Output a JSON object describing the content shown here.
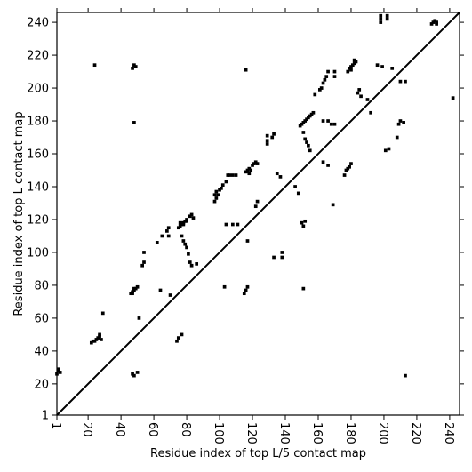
{
  "chart_data": {
    "type": "scatter",
    "title": "",
    "xlabel": "Residue index of top L/5 contact map",
    "ylabel": "Residue index of top L contact map",
    "xlim": [
      1,
      246
    ],
    "ylim": [
      1,
      246
    ],
    "xticks": [
      1,
      20,
      40,
      60,
      80,
      100,
      120,
      140,
      160,
      180,
      200,
      220,
      240
    ],
    "yticks": [
      1,
      20,
      40,
      60,
      80,
      100,
      120,
      140,
      160,
      180,
      200,
      220,
      240
    ],
    "xtick_rotation": -90,
    "grid": false,
    "diagonal": {
      "from": [
        1,
        1
      ],
      "to": [
        246,
        246
      ],
      "color": "#000000"
    },
    "marker": {
      "shape": "square",
      "size": 1,
      "color": "#000000"
    },
    "series": [
      {
        "points": [
          [
            47,
            76
          ],
          [
            48,
            77
          ],
          [
            49,
            78
          ],
          [
            50,
            79
          ],
          [
            46,
            75
          ],
          [
            48,
            78
          ],
          [
            47,
            75
          ],
          [
            51,
            60
          ],
          [
            53,
            92
          ],
          [
            54,
            94
          ],
          [
            54,
            100
          ],
          [
            62,
            106
          ],
          [
            65,
            110
          ],
          [
            68,
            113
          ],
          [
            69,
            110
          ],
          [
            69,
            115
          ],
          [
            70,
            74
          ],
          [
            64,
            77
          ],
          [
            75,
            115
          ],
          [
            76,
            116
          ],
          [
            77,
            117
          ],
          [
            78,
            118
          ],
          [
            79,
            119
          ],
          [
            80,
            120
          ],
          [
            76,
            118
          ],
          [
            78,
            117
          ],
          [
            80,
            119
          ],
          [
            82,
            122
          ],
          [
            83,
            123
          ],
          [
            84,
            121
          ],
          [
            77,
            110
          ],
          [
            78,
            107
          ],
          [
            79,
            105
          ],
          [
            80,
            103
          ],
          [
            81,
            99
          ],
          [
            82,
            94
          ],
          [
            83,
            92
          ],
          [
            86,
            93
          ],
          [
            97,
            131
          ],
          [
            98,
            133
          ],
          [
            97,
            135
          ],
          [
            98,
            137
          ],
          [
            99,
            135
          ],
          [
            100,
            138
          ],
          [
            101,
            139
          ],
          [
            102,
            141
          ],
          [
            104,
            143
          ],
          [
            105,
            147
          ],
          [
            106,
            147
          ],
          [
            108,
            147
          ],
          [
            110,
            147
          ],
          [
            104,
            117
          ],
          [
            108,
            117
          ],
          [
            111,
            117
          ],
          [
            115,
            75
          ],
          [
            116,
            77
          ],
          [
            117,
            79
          ],
          [
            103,
            79
          ],
          [
            116,
            149
          ],
          [
            117,
            150
          ],
          [
            118,
            151
          ],
          [
            119,
            150
          ],
          [
            120,
            153
          ],
          [
            121,
            154
          ],
          [
            122,
            155
          ],
          [
            118,
            148
          ],
          [
            123,
            154
          ],
          [
            122,
            128
          ],
          [
            123,
            131
          ],
          [
            117,
            107
          ],
          [
            129,
            166
          ],
          [
            129,
            168
          ],
          [
            129,
            171
          ],
          [
            132,
            170
          ],
          [
            133,
            172
          ],
          [
            135,
            148
          ],
          [
            137,
            146
          ],
          [
            138,
            97
          ],
          [
            138,
            100
          ],
          [
            133,
            97
          ],
          [
            146,
            140
          ],
          [
            148,
            136
          ],
          [
            150,
            118
          ],
          [
            151,
            116
          ],
          [
            152,
            119
          ],
          [
            151,
            78
          ],
          [
            149,
            177
          ],
          [
            150,
            178
          ],
          [
            151,
            179
          ],
          [
            152,
            180
          ],
          [
            153,
            181
          ],
          [
            154,
            182
          ],
          [
            155,
            183
          ],
          [
            156,
            184
          ],
          [
            157,
            185
          ],
          [
            151,
            173
          ],
          [
            152,
            169
          ],
          [
            153,
            167
          ],
          [
            154,
            165
          ],
          [
            155,
            162
          ],
          [
            158,
            196
          ],
          [
            161,
            199
          ],
          [
            162,
            200
          ],
          [
            163,
            203
          ],
          [
            164,
            205
          ],
          [
            165,
            207
          ],
          [
            166,
            210
          ],
          [
            170,
            207
          ],
          [
            170,
            210
          ],
          [
            163,
            180
          ],
          [
            166,
            180
          ],
          [
            168,
            178
          ],
          [
            170,
            178
          ],
          [
            169,
            129
          ],
          [
            163,
            155
          ],
          [
            166,
            153
          ],
          [
            176,
            147
          ],
          [
            177,
            150
          ],
          [
            178,
            151
          ],
          [
            179,
            152
          ],
          [
            180,
            154
          ],
          [
            178,
            210
          ],
          [
            179,
            212
          ],
          [
            180,
            213
          ],
          [
            181,
            214
          ],
          [
            182,
            215
          ],
          [
            183,
            216
          ],
          [
            180,
            211
          ],
          [
            182,
            217
          ],
          [
            184,
            197
          ],
          [
            185,
            199
          ],
          [
            186,
            195
          ],
          [
            190,
            193
          ],
          [
            192,
            185
          ],
          [
            196,
            214
          ],
          [
            199,
            213
          ],
          [
            201,
            162
          ],
          [
            203,
            163
          ],
          [
            205,
            212
          ],
          [
            208,
            170
          ],
          [
            209,
            178
          ],
          [
            210,
            180
          ],
          [
            212,
            179
          ],
          [
            210,
            204
          ],
          [
            213,
            204
          ],
          [
            213,
            25
          ],
          [
            198,
            240
          ],
          [
            198,
            242
          ],
          [
            198,
            244
          ],
          [
            202,
            242
          ],
          [
            202,
            244
          ],
          [
            229,
            239
          ],
          [
            230,
            240
          ],
          [
            231,
            241
          ],
          [
            232,
            240
          ],
          [
            232,
            239
          ],
          [
            242,
            194
          ],
          [
            22,
            45
          ],
          [
            23,
            46
          ],
          [
            24,
            46
          ],
          [
            25,
            47
          ],
          [
            26,
            48
          ],
          [
            27,
            49
          ],
          [
            27,
            50
          ],
          [
            28,
            47
          ],
          [
            29,
            63
          ],
          [
            24,
            214
          ],
          [
            1,
            26
          ],
          [
            2,
            28
          ],
          [
            2,
            29
          ],
          [
            3,
            27
          ],
          [
            47,
            212
          ],
          [
            48,
            214
          ],
          [
            49,
            213
          ],
          [
            48,
            179
          ],
          [
            47,
            26
          ],
          [
            48,
            25
          ],
          [
            50,
            27
          ],
          [
            74,
            46
          ],
          [
            75,
            48
          ],
          [
            77,
            50
          ],
          [
            116,
            211
          ]
        ]
      }
    ]
  }
}
